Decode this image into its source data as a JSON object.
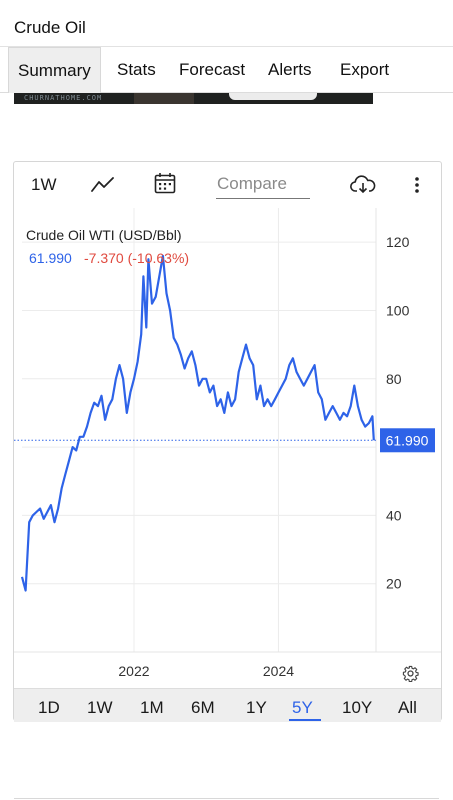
{
  "app": {
    "title": "Crude Oil"
  },
  "tabs": [
    {
      "label": "Summary",
      "active": true
    },
    {
      "label": "Stats",
      "active": false
    },
    {
      "label": "Forecast",
      "active": false
    },
    {
      "label": "Alerts",
      "active": false
    },
    {
      "label": "Export",
      "active": false
    }
  ],
  "ad": {
    "text": "CHURNATHOME.COM"
  },
  "toolbar": {
    "range_label": "1W",
    "chart_type_icon": "line-chart-icon",
    "calendar_icon": "calendar-icon",
    "compare_placeholder": "Compare",
    "download_icon": "cloud-download-icon",
    "more_icon": "more-vertical-icon"
  },
  "legend": {
    "name": "Crude Oil WTI (USD/Bbl)",
    "price": "61.990",
    "change": "-7.370 (-10.63%)"
  },
  "periods": [
    "1D",
    "1W",
    "1M",
    "6M",
    "1Y",
    "5Y",
    "10Y",
    "All"
  ],
  "selected_period": "5Y",
  "colors": {
    "line": "#2e63e8",
    "negative": "#e04a3f",
    "grid": "#ececec"
  },
  "chart_data": {
    "type": "line",
    "title": "Crude Oil WTI (USD/Bbl)",
    "xlabel": "",
    "ylabel": "",
    "ylim": [
      0,
      130
    ],
    "xlim": [
      2020.45,
      2025.35
    ],
    "y_ticks": [
      20,
      40,
      60,
      80,
      100,
      120
    ],
    "x_ticks": [
      {
        "value": 2022,
        "label": "2022"
      },
      {
        "value": 2024,
        "label": "2024"
      }
    ],
    "last_value": 61.99,
    "last_value_label": "61.990",
    "grid": true,
    "series": [
      {
        "name": "Crude Oil WTI (USD/Bbl)",
        "x": [
          2020.45,
          2020.5,
          2020.55,
          2020.6,
          2020.65,
          2020.7,
          2020.75,
          2020.8,
          2020.85,
          2020.9,
          2020.95,
          2021.0,
          2021.05,
          2021.1,
          2021.15,
          2021.2,
          2021.25,
          2021.3,
          2021.35,
          2021.4,
          2021.45,
          2021.5,
          2021.55,
          2021.6,
          2021.65,
          2021.7,
          2021.75,
          2021.8,
          2021.85,
          2021.9,
          2021.95,
          2022.0,
          2022.05,
          2022.1,
          2022.13,
          2022.17,
          2022.2,
          2022.25,
          2022.3,
          2022.35,
          2022.4,
          2022.45,
          2022.5,
          2022.55,
          2022.6,
          2022.65,
          2022.7,
          2022.75,
          2022.8,
          2022.85,
          2022.9,
          2022.95,
          2023.0,
          2023.05,
          2023.1,
          2023.15,
          2023.2,
          2023.25,
          2023.3,
          2023.35,
          2023.4,
          2023.45,
          2023.5,
          2023.55,
          2023.6,
          2023.65,
          2023.7,
          2023.75,
          2023.8,
          2023.85,
          2023.9,
          2023.95,
          2024.0,
          2024.05,
          2024.1,
          2024.15,
          2024.2,
          2024.25,
          2024.3,
          2024.35,
          2024.4,
          2024.45,
          2024.5,
          2024.55,
          2024.6,
          2024.65,
          2024.7,
          2024.75,
          2024.8,
          2024.85,
          2024.9,
          2024.95,
          2025.0,
          2025.05,
          2025.1,
          2025.15,
          2025.2,
          2025.25,
          2025.3,
          2025.32
        ],
        "values": [
          22,
          18,
          38,
          40,
          41,
          42,
          39,
          41,
          43,
          38,
          42,
          48,
          52,
          56,
          60,
          59,
          63,
          63,
          66,
          70,
          73,
          72,
          75,
          68,
          72,
          74,
          80,
          84,
          80,
          70,
          76,
          80,
          85,
          93,
          110,
          95,
          115,
          102,
          104,
          110,
          116,
          105,
          100,
          92,
          90,
          87,
          83,
          86,
          88,
          84,
          78,
          80,
          80,
          76,
          78,
          72,
          74,
          70,
          76,
          72,
          74,
          82,
          86,
          90,
          86,
          84,
          74,
          78,
          72,
          74,
          72,
          74,
          76,
          78,
          80,
          84,
          86,
          82,
          80,
          78,
          80,
          82,
          84,
          76,
          74,
          68,
          70,
          72,
          70,
          68,
          70,
          69,
          72,
          78,
          72,
          68,
          66,
          67,
          69,
          62
        ]
      }
    ]
  }
}
